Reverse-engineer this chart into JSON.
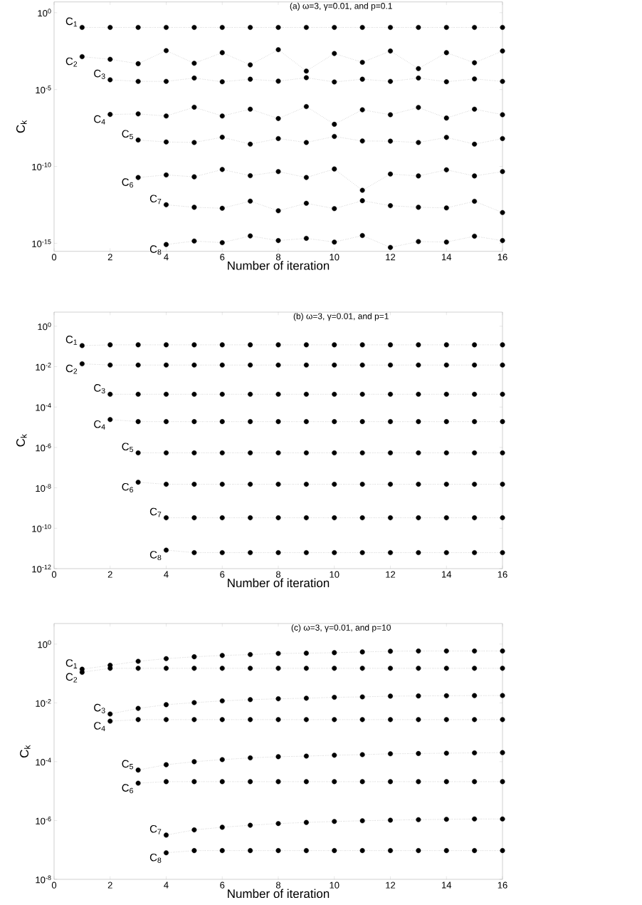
{
  "chart_data": [
    {
      "type": "line",
      "title": "(a)  ω=3,  γ=0.01, and p=0.1",
      "xlabel": "Number of iteration",
      "ylabel": "C$_{k}$",
      "log": true,
      "marker": "circle",
      "line_style": "dotted",
      "xlim": [
        0,
        16
      ],
      "ylim": [
        3e-16,
        5
      ],
      "xticks": [
        0,
        2,
        4,
        6,
        8,
        10,
        12,
        14,
        16
      ],
      "yticks": [
        {
          "value": 1,
          "label": "10$^{0}$"
        },
        {
          "value": 1e-05,
          "label": "10$^{-5}$"
        },
        {
          "value": 1e-10,
          "label": "10$^{-10}$"
        },
        {
          "value": 1e-15,
          "label": "10$^{-15}$"
        }
      ],
      "series": [
        {
          "name": "C$_{1}$",
          "color": "#000000",
          "x": [
            1,
            2,
            3,
            4,
            5,
            6,
            7,
            8,
            9,
            10,
            11,
            12,
            13,
            14,
            15,
            16
          ],
          "values": [
            0.11,
            0.11,
            0.11,
            0.11,
            0.11,
            0.11,
            0.11,
            0.11,
            0.11,
            0.11,
            0.11,
            0.11,
            0.11,
            0.11,
            0.11,
            0.11
          ]
        },
        {
          "name": "C$_{2}$",
          "color": "#000000",
          "x": [
            1,
            2,
            3,
            4,
            5,
            6,
            7,
            8,
            9,
            10,
            11,
            12,
            13,
            14,
            15,
            16
          ],
          "values": [
            0.00138,
            0.00093,
            0.00048,
            0.0034,
            0.00051,
            0.0025,
            0.0004,
            0.0039,
            0.00016,
            0.0022,
            0.00059,
            0.0032,
            0.00023,
            0.0025,
            0.00055,
            0.0032
          ]
        },
        {
          "name": "C$_{3}$",
          "color": "#000000",
          "x": [
            2,
            3,
            4,
            5,
            6,
            7,
            8,
            9,
            10,
            11,
            12,
            13,
            14,
            15,
            16
          ],
          "values": [
            4.3e-05,
            3.4e-05,
            3.4e-05,
            5.6e-05,
            3.2e-05,
            4.7e-05,
            3.5e-05,
            5.9e-05,
            3.1e-05,
            4.7e-05,
            3.4e-05,
            5.6e-05,
            3.2e-05,
            4.9e-05,
            3.4e-05
          ]
        },
        {
          "name": "C$_{4}$",
          "color": "#000000",
          "x": [
            2,
            3,
            4,
            5,
            6,
            7,
            8,
            9,
            10,
            11,
            12,
            13,
            14,
            15,
            16
          ],
          "values": [
            2.4e-07,
            2.6e-07,
            1.9e-07,
            7.1e-07,
            1.9e-07,
            5.3e-07,
            1.3e-07,
            7.8e-07,
            5.5e-08,
            4.8e-07,
            2.3e-07,
            6.8e-07,
            1.4e-07,
            5.3e-07,
            2.3e-07
          ]
        },
        {
          "name": "C$_{5}$",
          "color": "#000000",
          "x": [
            3,
            4,
            5,
            6,
            7,
            8,
            9,
            10,
            11,
            12,
            13,
            14,
            15,
            16
          ],
          "values": [
            5.2e-09,
            3.9e-09,
            3.6e-09,
            7.9e-09,
            2.8e-09,
            6.5e-09,
            3.6e-09,
            8.9e-09,
            4.5e-09,
            4.4e-09,
            3.6e-09,
            7.7e-09,
            2.8e-09,
            6.5e-09
          ]
        },
        {
          "name": "C$_{6}$",
          "color": "#000000",
          "x": [
            3,
            4,
            5,
            6,
            7,
            8,
            9,
            10,
            11,
            12,
            13,
            14,
            15,
            16
          ],
          "values": [
            1.9e-11,
            2.8e-11,
            2.1e-11,
            6.3e-11,
            2.5e-11,
            4.6e-11,
            1.9e-11,
            6.8e-11,
            2.8e-12,
            3.2e-11,
            2.4e-11,
            6e-11,
            2.4e-11,
            4.6e-11
          ]
        },
        {
          "name": "C$_{7}$",
          "color": "#000000",
          "x": [
            4,
            5,
            6,
            7,
            8,
            9,
            10,
            11,
            12,
            13,
            14,
            15,
            16
          ],
          "values": [
            3.2e-13,
            2.2e-13,
            1.9e-13,
            5.5e-13,
            1.3e-13,
            4e-13,
            1.8e-13,
            5.9e-13,
            2.8e-13,
            2.2e-13,
            2e-13,
            5.4e-13,
            1e-13
          ]
        },
        {
          "name": "C$_{8}$",
          "color": "#000000",
          "x": [
            4,
            5,
            6,
            7,
            8,
            9,
            10,
            11,
            12,
            13,
            14,
            15,
            16
          ],
          "values": [
            8.3e-16,
            1.4e-15,
            1.1e-15,
            3e-15,
            1.5e-15,
            2.1e-15,
            1.2e-15,
            3.2e-15,
            5.4e-16,
            1.3e-15,
            1.2e-15,
            2.9e-15,
            1.5e-15
          ]
        }
      ]
    },
    {
      "type": "line",
      "title": "(b)  ω=3,  γ=0.01, and p=1",
      "xlabel": "Number of iteration",
      "ylabel": "C$_{k}$",
      "log": true,
      "marker": "circle",
      "line_style": "dotted",
      "xlim": [
        0,
        16
      ],
      "ylim": [
        1e-12,
        5
      ],
      "xticks": [
        0,
        2,
        4,
        6,
        8,
        10,
        12,
        14,
        16
      ],
      "yticks": [
        {
          "value": 1,
          "label": "10$^{0}$"
        },
        {
          "value": 0.01,
          "label": "10$^{-2}$"
        },
        {
          "value": 0.0001,
          "label": "10$^{-4}$"
        },
        {
          "value": 1e-06,
          "label": "10$^{-6}$"
        },
        {
          "value": 1e-08,
          "label": "10$^{-8}$"
        },
        {
          "value": 1e-10,
          "label": "10$^{-10}$"
        },
        {
          "value": 1e-12,
          "label": "10$^{-12}$"
        }
      ],
      "series": [
        {
          "name": "C$_{1}$",
          "color": "#000000",
          "x": [
            1,
            2,
            3,
            4,
            5,
            6,
            7,
            8,
            9,
            10,
            11,
            12,
            13,
            14,
            15,
            16
          ],
          "values": [
            0.11,
            0.12,
            0.12,
            0.12,
            0.12,
            0.12,
            0.12,
            0.12,
            0.12,
            0.12,
            0.12,
            0.12,
            0.12,
            0.12,
            0.12,
            0.12
          ]
        },
        {
          "name": "C$_{2}$",
          "color": "#000000",
          "x": [
            1,
            2,
            3,
            4,
            5,
            6,
            7,
            8,
            9,
            10,
            11,
            12,
            13,
            14,
            15,
            16
          ],
          "values": [
            0.0138,
            0.012,
            0.012,
            0.012,
            0.012,
            0.012,
            0.012,
            0.012,
            0.012,
            0.012,
            0.012,
            0.012,
            0.012,
            0.012,
            0.012,
            0.012
          ]
        },
        {
          "name": "C$_{3}$",
          "color": "#000000",
          "x": [
            2,
            3,
            4,
            5,
            6,
            7,
            8,
            9,
            10,
            11,
            12,
            13,
            14,
            15,
            16
          ],
          "values": [
            0.00043,
            0.00043,
            0.00043,
            0.00043,
            0.00043,
            0.00043,
            0.00043,
            0.00043,
            0.00043,
            0.00043,
            0.00043,
            0.00043,
            0.00043,
            0.00043,
            0.00043
          ]
        },
        {
          "name": "C$_{4}$",
          "color": "#000000",
          "x": [
            2,
            3,
            4,
            5,
            6,
            7,
            8,
            9,
            10,
            11,
            12,
            13,
            14,
            15,
            16
          ],
          "values": [
            2.4e-05,
            1.9e-05,
            1.9e-05,
            1.9e-05,
            1.9e-05,
            1.9e-05,
            1.9e-05,
            1.9e-05,
            1.9e-05,
            1.9e-05,
            1.9e-05,
            1.9e-05,
            1.9e-05,
            1.9e-05,
            1.9e-05
          ]
        },
        {
          "name": "C$_{5}$",
          "color": "#000000",
          "x": [
            3,
            4,
            5,
            6,
            7,
            8,
            9,
            10,
            11,
            12,
            13,
            14,
            15,
            16
          ],
          "values": [
            5.4e-07,
            5.4e-07,
            5.4e-07,
            5.4e-07,
            5.4e-07,
            5.4e-07,
            5.4e-07,
            5.4e-07,
            5.4e-07,
            5.4e-07,
            5.4e-07,
            5.4e-07,
            5.4e-07,
            5.4e-07
          ]
        },
        {
          "name": "C$_{6}$",
          "color": "#000000",
          "x": [
            3,
            4,
            5,
            6,
            7,
            8,
            9,
            10,
            11,
            12,
            13,
            14,
            15,
            16
          ],
          "values": [
            1.9e-08,
            1.5e-08,
            1.5e-08,
            1.5e-08,
            1.5e-08,
            1.5e-08,
            1.5e-08,
            1.5e-08,
            1.5e-08,
            1.5e-08,
            1.5e-08,
            1.5e-08,
            1.5e-08,
            1.5e-08
          ]
        },
        {
          "name": "C$_{7}$",
          "color": "#000000",
          "x": [
            4,
            5,
            6,
            7,
            8,
            9,
            10,
            11,
            12,
            13,
            14,
            15,
            16
          ],
          "values": [
            3.3e-10,
            3.3e-10,
            3.3e-10,
            3.3e-10,
            3.3e-10,
            3.3e-10,
            3.3e-10,
            3.3e-10,
            3.3e-10,
            3.3e-10,
            3.3e-10,
            3.3e-10,
            3.3e-10
          ]
        },
        {
          "name": "C$_{8}$",
          "color": "#000000",
          "x": [
            4,
            5,
            6,
            7,
            8,
            9,
            10,
            11,
            12,
            13,
            14,
            15,
            16
          ],
          "values": [
            8.3e-12,
            6.2e-12,
            6.2e-12,
            6.2e-12,
            6.2e-12,
            6.2e-12,
            6.2e-12,
            6.2e-12,
            6.2e-12,
            6.2e-12,
            6.2e-12,
            6.2e-12,
            6.2e-12
          ]
        }
      ]
    },
    {
      "type": "line",
      "title": "(c)  ω=3,  γ=0.01, and p=10",
      "xlabel": "Number of iteration",
      "ylabel": "C$_{k}$",
      "log": true,
      "marker": "circle",
      "line_style": "dotted",
      "xlim": [
        0,
        16
      ],
      "ylim": [
        1e-08,
        5
      ],
      "xticks": [
        0,
        2,
        4,
        6,
        8,
        10,
        12,
        14,
        16
      ],
      "yticks": [
        {
          "value": 1,
          "label": "10$^{0}$"
        },
        {
          "value": 0.01,
          "label": "10$^{-2}$"
        },
        {
          "value": 0.0001,
          "label": "10$^{-4}$"
        },
        {
          "value": 1e-06,
          "label": "10$^{-6}$"
        },
        {
          "value": 1e-08,
          "label": "10$^{-8}$"
        }
      ],
      "series": [
        {
          "name": "C$_{1}$",
          "color": "#000000",
          "x": [
            1,
            2,
            3,
            4,
            5,
            6,
            7,
            8,
            9,
            10,
            11,
            12,
            13,
            14,
            15,
            16
          ],
          "values": [
            0.14,
            0.19,
            0.26,
            0.32,
            0.37,
            0.41,
            0.44,
            0.48,
            0.49,
            0.51,
            0.54,
            0.57,
            0.58,
            0.58,
            0.58,
            0.58
          ]
        },
        {
          "name": "C$_{2}$",
          "color": "#000000",
          "x": [
            1,
            2,
            3,
            4,
            5,
            6,
            7,
            8,
            9,
            10,
            11,
            12,
            13,
            14,
            15,
            16
          ],
          "values": [
            0.11,
            0.15,
            0.15,
            0.15,
            0.15,
            0.15,
            0.15,
            0.15,
            0.15,
            0.15,
            0.15,
            0.15,
            0.15,
            0.15,
            0.15,
            0.15
          ]
        },
        {
          "name": "C$_{3}$",
          "color": "#000000",
          "x": [
            2,
            3,
            4,
            5,
            6,
            7,
            8,
            9,
            10,
            11,
            12,
            13,
            14,
            15,
            16
          ],
          "values": [
            0.0042,
            0.0065,
            0.0087,
            0.0102,
            0.0117,
            0.0129,
            0.0138,
            0.0144,
            0.0155,
            0.016,
            0.017,
            0.0172,
            0.0175,
            0.0177,
            0.0178
          ]
        },
        {
          "name": "C$_{4}$",
          "color": "#000000",
          "x": [
            2,
            3,
            4,
            5,
            6,
            7,
            8,
            9,
            10,
            11,
            12,
            13,
            14,
            15,
            16
          ],
          "values": [
            0.0024,
            0.0027,
            0.0027,
            0.0027,
            0.0027,
            0.0027,
            0.0027,
            0.0027,
            0.0027,
            0.0027,
            0.0027,
            0.0027,
            0.0027,
            0.0027,
            0.0027
          ]
        },
        {
          "name": "C$_{5}$",
          "color": "#000000",
          "x": [
            3,
            4,
            5,
            6,
            7,
            8,
            9,
            10,
            11,
            12,
            13,
            14,
            15,
            16
          ],
          "values": [
            5.2e-05,
            7.9e-05,
            0.0001,
            0.000118,
            0.000135,
            0.000148,
            0.000155,
            0.000166,
            0.000174,
            0.000186,
            0.00019,
            0.000195,
            0.0002,
            0.000204
          ]
        },
        {
          "name": "C$_{6}$",
          "color": "#000000",
          "x": [
            3,
            4,
            5,
            6,
            7,
            8,
            9,
            10,
            11,
            12,
            13,
            14,
            15,
            16
          ],
          "values": [
            1.86e-05,
            2.1e-05,
            2.1e-05,
            2.1e-05,
            2.1e-05,
            2.1e-05,
            2.1e-05,
            2.1e-05,
            2.1e-05,
            2.1e-05,
            2.1e-05,
            2.1e-05,
            2.1e-05,
            2.1e-05
          ]
        },
        {
          "name": "C$_{7}$",
          "color": "#000000",
          "x": [
            4,
            5,
            6,
            7,
            8,
            9,
            10,
            11,
            12,
            13,
            14,
            15,
            16
          ],
          "values": [
            3.2e-07,
            4.8e-07,
            5.9e-07,
            6.9e-07,
            7.9e-07,
            8.6e-07,
            9.3e-07,
            9.8e-07,
            1.03e-06,
            1.07e-06,
            1.1e-06,
            1.13e-06,
            1.13e-06
          ]
        },
        {
          "name": "C$_{8}$",
          "color": "#000000",
          "x": [
            4,
            5,
            6,
            7,
            8,
            9,
            10,
            11,
            12,
            13,
            14,
            15,
            16
          ],
          "values": [
            8e-08,
            9.5e-08,
            9.5e-08,
            9.5e-08,
            9.5e-08,
            9.5e-08,
            9.5e-08,
            9.5e-08,
            9.5e-08,
            9.5e-08,
            9.5e-08,
            9.5e-08,
            9.5e-08
          ]
        }
      ]
    }
  ]
}
